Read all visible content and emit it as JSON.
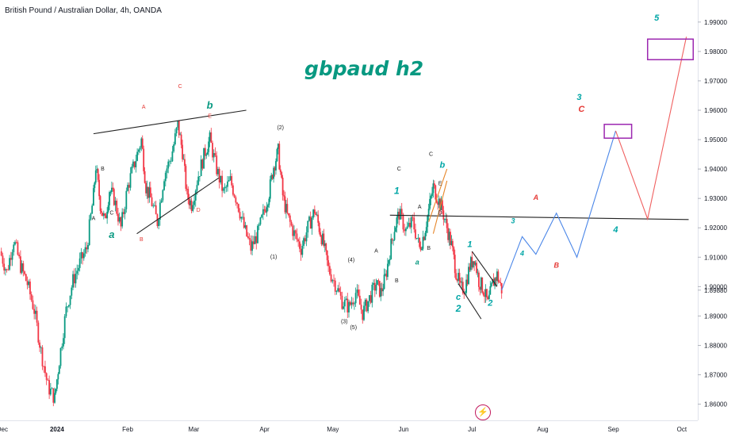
{
  "header": {
    "symbol_title": "British Pound / Australian Dollar, 4h, OANDA",
    "headline": "gbpaud h2"
  },
  "badge": {
    "icon": "lightning-icon",
    "glyph": "⚡"
  },
  "colors": {
    "bull": "#089981",
    "bear": "#f23645",
    "projection_up": "#4a86e8",
    "projection_down": "#f06060",
    "target_box": "#9c27b0",
    "label_red": "#e53935",
    "label_teal": "#00a6a6",
    "label_dark": "#222222"
  },
  "chart_data": {
    "type": "candlestick",
    "symbol": "GBPAUD",
    "timeframe": "4h",
    "source": "OANDA",
    "title": "British Pound / Australian Dollar, 4h, OANDA",
    "annotation_title": "gbpaud h2",
    "y_axis": {
      "ticks": [
        1.86,
        1.87,
        1.88,
        1.89,
        1.8988,
        1.9,
        1.91,
        1.92,
        1.93,
        1.94,
        1.95,
        1.96,
        1.97,
        1.98,
        1.99
      ],
      "tick_labels": [
        "1.86000",
        "1.87000",
        "1.88000",
        "1.89000",
        "1.89880",
        "1.90000",
        "1.91000",
        "1.92000",
        "1.93000",
        "1.94000",
        "1.95000",
        "1.96000",
        "1.97000",
        "1.98000",
        "1.99000"
      ],
      "ylim": [
        1.8545,
        1.9975
      ],
      "last_price": "1.89880"
    },
    "x_axis": {
      "labels": [
        "Dec",
        "2024",
        "Feb",
        "Mar",
        "Apr",
        "May",
        "Jun",
        "Jul",
        "Aug",
        "Sep",
        "Oct"
      ],
      "bold": [
        "2024"
      ],
      "xlim_days": [
        -8,
        298
      ],
      "label_days": [
        -7,
        17,
        48,
        77,
        108,
        138,
        169,
        199,
        230,
        261,
        291
      ]
    },
    "price_path": [
      {
        "d": -8,
        "p": 1.912
      },
      {
        "d": -5,
        "p": 1.905
      },
      {
        "d": -2,
        "p": 1.916
      },
      {
        "d": 1,
        "p": 1.907
      },
      {
        "d": 4,
        "p": 1.901
      },
      {
        "d": 7,
        "p": 1.892
      },
      {
        "d": 10,
        "p": 1.878
      },
      {
        "d": 13,
        "p": 1.866
      },
      {
        "d": 16,
        "p": 1.862
      },
      {
        "d": 18,
        "p": 1.875
      },
      {
        "d": 21,
        "p": 1.892
      },
      {
        "d": 24,
        "p": 1.902
      },
      {
        "d": 27,
        "p": 1.908
      },
      {
        "d": 30,
        "p": 1.913
      },
      {
        "d": 33,
        "p": 1.931
      },
      {
        "d": 34,
        "p": 1.941
      },
      {
        "d": 36,
        "p": 1.928
      },
      {
        "d": 38,
        "p": 1.922
      },
      {
        "d": 40,
        "p": 1.933
      },
      {
        "d": 42,
        "p": 1.93
      },
      {
        "d": 45,
        "p": 1.92
      },
      {
        "d": 48,
        "p": 1.934
      },
      {
        "d": 51,
        "p": 1.942
      },
      {
        "d": 54,
        "p": 1.95
      },
      {
        "d": 56,
        "p": 1.934
      },
      {
        "d": 58,
        "p": 1.93
      },
      {
        "d": 61,
        "p": 1.922
      },
      {
        "d": 64,
        "p": 1.938
      },
      {
        "d": 67,
        "p": 1.944
      },
      {
        "d": 70,
        "p": 1.955
      },
      {
        "d": 72,
        "p": 1.946
      },
      {
        "d": 74,
        "p": 1.931
      },
      {
        "d": 76,
        "p": 1.928
      },
      {
        "d": 79,
        "p": 1.938
      },
      {
        "d": 82,
        "p": 1.946
      },
      {
        "d": 84,
        "p": 1.95
      },
      {
        "d": 87,
        "p": 1.94
      },
      {
        "d": 90,
        "p": 1.932
      },
      {
        "d": 93,
        "p": 1.936
      },
      {
        "d": 96,
        "p": 1.929
      },
      {
        "d": 99,
        "p": 1.92
      },
      {
        "d": 102,
        "p": 1.913
      },
      {
        "d": 105,
        "p": 1.918
      },
      {
        "d": 108,
        "p": 1.926
      },
      {
        "d": 110,
        "p": 1.932
      },
      {
        "d": 112,
        "p": 1.941
      },
      {
        "d": 114,
        "p": 1.946
      },
      {
        "d": 116,
        "p": 1.931
      },
      {
        "d": 118,
        "p": 1.924
      },
      {
        "d": 121,
        "p": 1.918
      },
      {
        "d": 124,
        "p": 1.913
      },
      {
        "d": 127,
        "p": 1.92
      },
      {
        "d": 130,
        "p": 1.926
      },
      {
        "d": 132,
        "p": 1.92
      },
      {
        "d": 134,
        "p": 1.914
      },
      {
        "d": 136,
        "p": 1.906
      },
      {
        "d": 139,
        "p": 1.901
      },
      {
        "d": 142,
        "p": 1.895
      },
      {
        "d": 145,
        "p": 1.893
      },
      {
        "d": 148,
        "p": 1.898
      },
      {
        "d": 151,
        "p": 1.891
      },
      {
        "d": 154,
        "p": 1.896
      },
      {
        "d": 157,
        "p": 1.901
      },
      {
        "d": 159,
        "p": 1.898
      },
      {
        "d": 161,
        "p": 1.903
      },
      {
        "d": 163,
        "p": 1.912
      },
      {
        "d": 165,
        "p": 1.92
      },
      {
        "d": 167,
        "p": 1.925
      },
      {
        "d": 170,
        "p": 1.919
      },
      {
        "d": 173,
        "p": 1.922
      },
      {
        "d": 176,
        "p": 1.913
      },
      {
        "d": 178,
        "p": 1.918
      },
      {
        "d": 180,
        "p": 1.926
      },
      {
        "d": 182,
        "p": 1.934
      },
      {
        "d": 184,
        "p": 1.93
      },
      {
        "d": 186,
        "p": 1.926
      },
      {
        "d": 188,
        "p": 1.92
      },
      {
        "d": 190,
        "p": 1.914
      },
      {
        "d": 192,
        "p": 1.905
      },
      {
        "d": 194,
        "p": 1.899
      },
      {
        "d": 196,
        "p": 1.9
      },
      {
        "d": 198,
        "p": 1.907
      },
      {
        "d": 200,
        "p": 1.91
      },
      {
        "d": 202,
        "p": 1.902
      },
      {
        "d": 204,
        "p": 1.899
      },
      {
        "d": 206,
        "p": 1.894
      },
      {
        "d": 208,
        "p": 1.901
      },
      {
        "d": 210,
        "p": 1.904
      },
      {
        "d": 212,
        "p": 1.899
      }
    ],
    "projection_up": [
      {
        "d": 212,
        "p": 1.8988
      },
      {
        "d": 221,
        "p": 1.917
      },
      {
        "d": 227,
        "p": 1.911
      },
      {
        "d": 236,
        "p": 1.925
      },
      {
        "d": 245,
        "p": 1.91
      },
      {
        "d": 262,
        "p": 1.953
      }
    ],
    "projection_down": [
      {
        "d": 262,
        "p": 1.953
      },
      {
        "d": 276,
        "p": 1.923
      },
      {
        "d": 293,
        "p": 1.985
      }
    ],
    "trend_lines": [
      {
        "from": {
          "d": 33,
          "p": 1.952
        },
        "to": {
          "d": 100,
          "p": 1.96
        },
        "color": "#222222"
      },
      {
        "from": {
          "d": 52,
          "p": 1.918
        },
        "to": {
          "d": 88,
          "p": 1.937
        },
        "color": "#222222"
      },
      {
        "from": {
          "d": 163,
          "p": 1.9243
        },
        "to": {
          "d": 294,
          "p": 1.9228
        },
        "color": "#222222"
      },
      {
        "from": {
          "d": 199,
          "p": 1.912
        },
        "to": {
          "d": 210,
          "p": 1.9
        },
        "color": "#222222"
      },
      {
        "from": {
          "d": 193,
          "p": 1.901
        },
        "to": {
          "d": 203,
          "p": 1.889
        },
        "color": "#222222"
      },
      {
        "from": {
          "d": 180,
          "p": 1.922
        },
        "to": {
          "d": 188,
          "p": 1.94
        },
        "color": "#e6862a"
      },
      {
        "from": {
          "d": 182,
          "p": 1.918
        },
        "to": {
          "d": 188,
          "p": 1.936
        },
        "color": "#e6862a"
      }
    ],
    "target_boxes": [
      {
        "d1": 257,
        "d2": 269,
        "p1": 1.9505,
        "p2": 1.9552
      },
      {
        "d1": 276,
        "d2": 296,
        "p1": 1.9772,
        "p2": 1.9842
      }
    ],
    "wave_labels": [
      {
        "text": "A",
        "d": 33,
        "p": 1.9226,
        "color": "#222222",
        "size": 7
      },
      {
        "text": "B",
        "d": 37,
        "p": 1.9395,
        "color": "#222222",
        "size": 7
      },
      {
        "text": "C",
        "d": 41,
        "p": 1.9245,
        "color": "#222222",
        "size": 7
      },
      {
        "text": "a",
        "d": 41,
        "p": 1.9165,
        "color": "#089981",
        "size": 13,
        "italic": true
      },
      {
        "text": "A",
        "d": 55,
        "p": 1.9605,
        "color": "#e53935",
        "size": 7
      },
      {
        "text": "B",
        "d": 54,
        "p": 1.9155,
        "color": "#e53935",
        "size": 7
      },
      {
        "text": "C",
        "d": 71,
        "p": 1.9675,
        "color": "#e53935",
        "size": 7
      },
      {
        "text": "D",
        "d": 79,
        "p": 1.9255,
        "color": "#e53935",
        "size": 7
      },
      {
        "text": "E",
        "d": 84,
        "p": 1.9575,
        "color": "#e53935",
        "size": 7
      },
      {
        "text": "b",
        "d": 84,
        "p": 1.9605,
        "color": "#089981",
        "size": 13,
        "italic": true
      },
      {
        "text": "(1)",
        "d": 112,
        "p": 1.9095,
        "color": "#222222",
        "size": 7
      },
      {
        "text": "(2)",
        "d": 115,
        "p": 1.9535,
        "color": "#222222",
        "size": 7
      },
      {
        "text": "(3)",
        "d": 143,
        "p": 1.8875,
        "color": "#222222",
        "size": 7
      },
      {
        "text": "(4)",
        "d": 146,
        "p": 1.9085,
        "color": "#222222",
        "size": 7
      },
      {
        "text": "(5)",
        "d": 147,
        "p": 1.8855,
        "color": "#222222",
        "size": 7
      },
      {
        "text": "A",
        "d": 157,
        "p": 1.9115,
        "color": "#222222",
        "size": 7
      },
      {
        "text": "B",
        "d": 166,
        "p": 1.9015,
        "color": "#222222",
        "size": 7
      },
      {
        "text": "C",
        "d": 167,
        "p": 1.9395,
        "color": "#222222",
        "size": 7
      },
      {
        "text": "1",
        "d": 166,
        "p": 1.9315,
        "color": "#00a6a6",
        "size": 12,
        "italic": true
      },
      {
        "text": "A",
        "d": 176,
        "p": 1.9265,
        "color": "#222222",
        "size": 7
      },
      {
        "text": "B",
        "d": 180,
        "p": 1.9125,
        "color": "#222222",
        "size": 7
      },
      {
        "text": "a",
        "d": 175,
        "p": 1.9075,
        "color": "#089981",
        "size": 9,
        "italic": true
      },
      {
        "text": "C",
        "d": 181,
        "p": 1.9445,
        "color": "#222222",
        "size": 7
      },
      {
        "text": "b",
        "d": 186,
        "p": 1.9405,
        "color": "#00a6a6",
        "size": 11,
        "italic": true
      },
      {
        "text": "E",
        "d": 185,
        "p": 1.9345,
        "color": "#222222",
        "size": 7
      },
      {
        "text": "D",
        "d": 185,
        "p": 1.9245,
        "color": "#222222",
        "size": 7
      },
      {
        "text": "1",
        "d": 198,
        "p": 1.9135,
        "color": "#00a6a6",
        "size": 11,
        "italic": true
      },
      {
        "text": "c",
        "d": 193,
        "p": 1.8955,
        "color": "#00a6a6",
        "size": 11,
        "italic": true
      },
      {
        "text": "2",
        "d": 193,
        "p": 1.8915,
        "color": "#00a6a6",
        "size": 12,
        "italic": true
      },
      {
        "text": "2",
        "d": 207,
        "p": 1.8935,
        "color": "#00a6a6",
        "size": 11,
        "italic": true
      },
      {
        "text": "3",
        "d": 217,
        "p": 1.9215,
        "color": "#00a6a6",
        "size": 9,
        "italic": true
      },
      {
        "text": "4",
        "d": 221,
        "p": 1.9105,
        "color": "#00a6a6",
        "size": 9,
        "italic": true
      },
      {
        "text": "A",
        "d": 227,
        "p": 1.9295,
        "color": "#e53935",
        "size": 9,
        "italic": true
      },
      {
        "text": "B",
        "d": 236,
        "p": 1.9065,
        "color": "#e53935",
        "size": 9,
        "italic": true
      },
      {
        "text": "3",
        "d": 246,
        "p": 1.9635,
        "color": "#00a6a6",
        "size": 11,
        "italic": true
      },
      {
        "text": "C",
        "d": 247,
        "p": 1.9595,
        "color": "#e53935",
        "size": 11,
        "italic": true
      },
      {
        "text": "4",
        "d": 262,
        "p": 1.9185,
        "color": "#00a6a6",
        "size": 11,
        "italic": true
      },
      {
        "text": "5",
        "d": 280,
        "p": 1.9905,
        "color": "#00a6a6",
        "size": 11,
        "italic": true
      }
    ]
  }
}
